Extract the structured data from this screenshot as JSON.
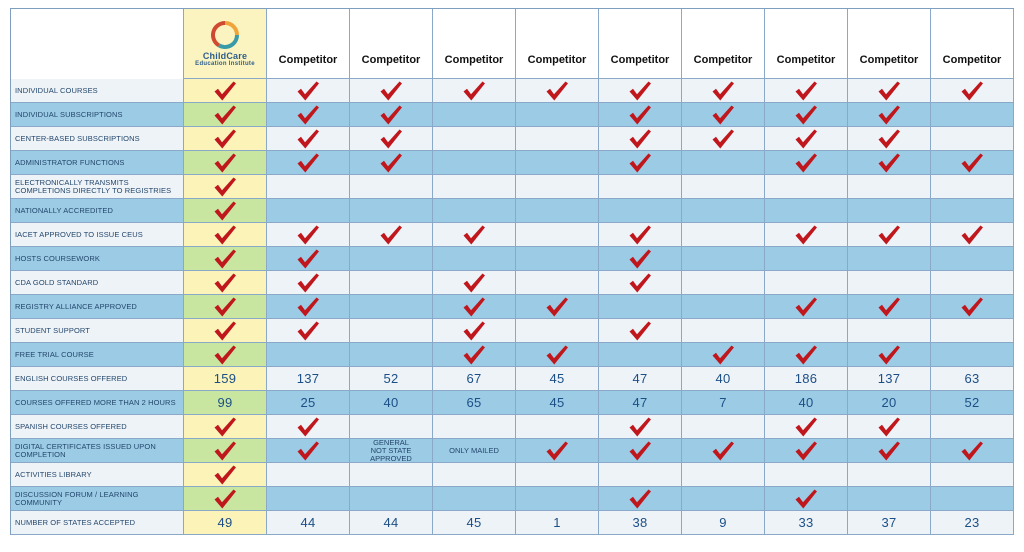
{
  "brand": {
    "name_line1": "ChildCare",
    "name_line2": "Education Institute",
    "colors": {
      "ring_orange": "#f0a33a",
      "ring_teal": "#3a9ba8",
      "ring_red": "#d04a32"
    }
  },
  "columns": [
    "Competitor",
    "Competitor",
    "Competitor",
    "Competitor",
    "Competitor",
    "Competitor",
    "Competitor",
    "Competitor",
    "Competitor"
  ],
  "icons": {
    "check": "checkmark-icon"
  },
  "colors": {
    "check": "#c0171d",
    "row_light": "#eef3f8",
    "row_blue": "#9ccbe6",
    "cei_light": "#fbf3b7",
    "cei_blue": "#c9e6a1"
  },
  "rows": [
    {
      "label": "Individual Courses",
      "cells": [
        "check",
        "check",
        "check",
        "check",
        "check",
        "check",
        "check",
        "check",
        "check",
        "check"
      ]
    },
    {
      "label": "Individual Subscriptions",
      "cells": [
        "check",
        "check",
        "check",
        "",
        "",
        "check",
        "check",
        "check",
        "check",
        ""
      ]
    },
    {
      "label": "Center-Based Subscriptions",
      "cells": [
        "check",
        "check",
        "check",
        "",
        "",
        "check",
        "check",
        "check",
        "check",
        ""
      ]
    },
    {
      "label": "Administrator Functions",
      "cells": [
        "check",
        "check",
        "check",
        "",
        "",
        "check",
        "",
        "check",
        "check",
        "check"
      ]
    },
    {
      "label": "Electronically Transmits Completions Directly to Registries",
      "cells": [
        "check",
        "",
        "",
        "",
        "",
        "",
        "",
        "",
        "",
        ""
      ]
    },
    {
      "label": "Nationally Accredited",
      "cells": [
        "check",
        "",
        "",
        "",
        "",
        "",
        "",
        "",
        "",
        ""
      ]
    },
    {
      "label": "IACET Approved to Issue CEUs",
      "cells": [
        "check",
        "check",
        "check",
        "check",
        "",
        "check",
        "",
        "check",
        "check",
        "check"
      ]
    },
    {
      "label": "Hosts Coursework",
      "cells": [
        "check",
        "check",
        "",
        "",
        "",
        "check",
        "",
        "",
        "",
        ""
      ]
    },
    {
      "label": "CDA Gold Standard",
      "cells": [
        "check",
        "check",
        "",
        "check",
        "",
        "check",
        "",
        "",
        "",
        ""
      ]
    },
    {
      "label": "Registry Alliance Approved",
      "cells": [
        "check",
        "check",
        "",
        "check",
        "check",
        "",
        "",
        "check",
        "check",
        "check"
      ]
    },
    {
      "label": "Student Support",
      "cells": [
        "check",
        "check",
        "",
        "check",
        "",
        "check",
        "",
        "",
        "",
        ""
      ]
    },
    {
      "label": "Free Trial Course",
      "cells": [
        "check",
        "",
        "",
        "check",
        "check",
        "",
        "check",
        "check",
        "check",
        ""
      ]
    },
    {
      "label": "English Courses Offered",
      "cells": [
        "159",
        "137",
        "52",
        "67",
        "45",
        "47",
        "40",
        "186",
        "137",
        "63"
      ]
    },
    {
      "label": "Courses Offered More Than 2 Hours",
      "cells": [
        "99",
        "25",
        "40",
        "65",
        "45",
        "47",
        "7",
        "40",
        "20",
        "52"
      ]
    },
    {
      "label": "Spanish Courses Offered",
      "cells": [
        "check",
        "check",
        "",
        "",
        "",
        "check",
        "",
        "check",
        "check",
        ""
      ]
    },
    {
      "label": "Digital Certificates Issued Upon Completion",
      "cells": [
        "check",
        "check",
        "General\nNot State Approved",
        "Only Mailed",
        "check",
        "check",
        "check",
        "check",
        "check",
        "check"
      ]
    },
    {
      "label": "Activities Library",
      "cells": [
        "check",
        "",
        "",
        "",
        "",
        "",
        "",
        "",
        "",
        ""
      ]
    },
    {
      "label": "Discussion Forum / Learning Community",
      "cells": [
        "check",
        "",
        "",
        "",
        "",
        "check",
        "",
        "check",
        "",
        ""
      ]
    },
    {
      "label": "Number of States Accepted",
      "cells": [
        "49",
        "44",
        "44",
        "45",
        "1",
        "38",
        "9",
        "33",
        "37",
        "23"
      ]
    }
  ]
}
